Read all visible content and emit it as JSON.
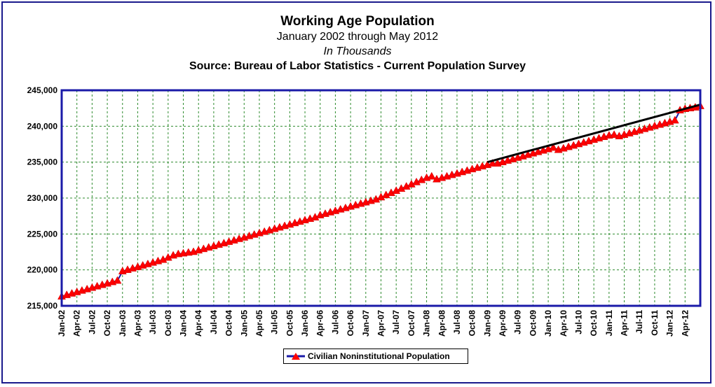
{
  "chart_data": {
    "type": "line",
    "title": "Working Age Population",
    "subtitle_lines": [
      "January 2002 through May 2012",
      "In Thousands",
      "Source: Bureau of Labor Statistics - Current Population Survey"
    ],
    "xlabel": "",
    "ylabel": "",
    "ylim": [
      215000,
      245000
    ],
    "y_ticks": [
      "215,000",
      "220,000",
      "225,000",
      "230,000",
      "235,000",
      "240,000",
      "245,000"
    ],
    "x_tick_labels": [
      "Jan-02",
      "Apr-02",
      "Jul-02",
      "Oct-02",
      "Jan-03",
      "Apr-03",
      "Jul-03",
      "Oct-03",
      "Jan-04",
      "Apr-04",
      "Jul-04",
      "Oct-04",
      "Jan-05",
      "Apr-05",
      "Jul-05",
      "Oct-05",
      "Jan-06",
      "Apr-06",
      "Jul-06",
      "Oct-06",
      "Jan-07",
      "Apr-07",
      "Jul-07",
      "Oct-07",
      "Jan-08",
      "Apr-08",
      "Jul-08",
      "Oct-08",
      "Jan-09",
      "Apr-09",
      "Jul-09",
      "Oct-09",
      "Jan-10",
      "Apr-10",
      "Jul-10",
      "Oct-10",
      "Jan-11",
      "Apr-11",
      "Jul-11",
      "Oct-11",
      "Jan-12",
      "Apr-12"
    ],
    "grid": true,
    "legend_position": "bottom-center",
    "series": [
      {
        "name": "Civilian Noninstitutional Population",
        "color": "#ff0000",
        "line_color": "#1a1aa8",
        "marker": "triangle",
        "start": "2002-01",
        "values": [
          216300,
          216500,
          216700,
          216900,
          217100,
          217300,
          217500,
          217700,
          217900,
          218100,
          218300,
          218500,
          219800,
          220000,
          220200,
          220400,
          220600,
          220800,
          221000,
          221200,
          221400,
          221700,
          222000,
          222200,
          222300,
          222400,
          222500,
          222700,
          222900,
          223100,
          223300,
          223500,
          223700,
          223900,
          224100,
          224300,
          224500,
          224700,
          224900,
          225100,
          225300,
          225500,
          225700,
          225900,
          226100,
          226300,
          226500,
          226700,
          226900,
          227100,
          227300,
          227600,
          227800,
          228000,
          228200,
          228400,
          228600,
          228800,
          229000,
          229200,
          229400,
          229600,
          229800,
          230100,
          230400,
          230700,
          231000,
          231300,
          231600,
          231900,
          232200,
          232500,
          232800,
          233000,
          232600,
          232800,
          233000,
          233200,
          233400,
          233600,
          233800,
          234000,
          234200,
          234400,
          234600,
          234800,
          234800,
          235000,
          235200,
          235400,
          235600,
          235800,
          236000,
          236200,
          236400,
          236600,
          236800,
          237000,
          236700,
          236900,
          237100,
          237300,
          237500,
          237700,
          237900,
          238100,
          238300,
          238500,
          238700,
          238800,
          238600,
          238800,
          239000,
          239200,
          239400,
          239600,
          239800,
          240000,
          240200,
          240400,
          240600,
          240800,
          242200,
          242400,
          242500,
          242600,
          242800
        ]
      }
    ],
    "trend_line": {
      "color": "#000000",
      "from": {
        "x": "Jan-09",
        "y": 235000
      },
      "to": {
        "x": "May-12",
        "y": 243000
      }
    }
  }
}
